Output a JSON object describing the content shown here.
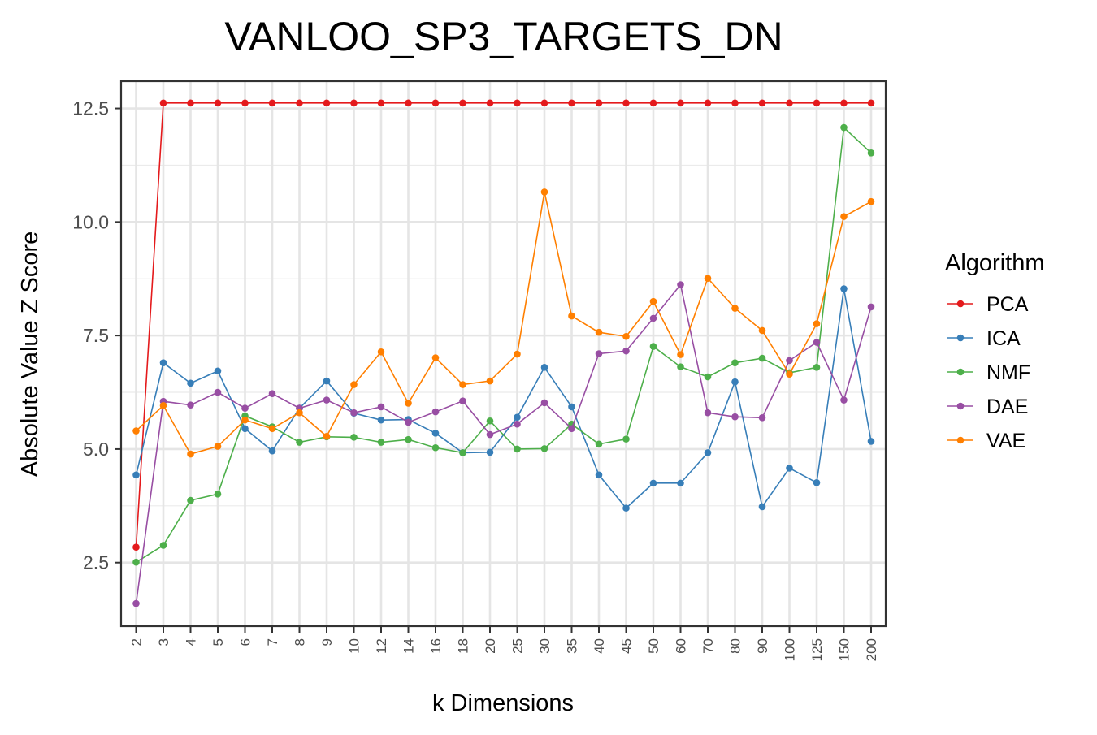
{
  "chart_data": {
    "type": "line",
    "title": "VANLOO_SP3_TARGETS_DN",
    "xlabel": "k Dimensions",
    "ylabel": "Absolute Value Z Score",
    "categories": [
      "2",
      "3",
      "4",
      "5",
      "6",
      "7",
      "8",
      "9",
      "10",
      "12",
      "14",
      "16",
      "18",
      "20",
      "25",
      "30",
      "35",
      "40",
      "45",
      "50",
      "60",
      "70",
      "80",
      "90",
      "100",
      "125",
      "150",
      "200"
    ],
    "ylim": [
      1.1,
      13.1
    ],
    "yticks": [
      2.5,
      5.0,
      7.5,
      10.0,
      12.5
    ],
    "ytick_labels": [
      "2.5",
      "5.0",
      "7.5",
      "10.0",
      "12.5"
    ],
    "grid": true,
    "legend": {
      "title": "Algorithm",
      "position": "right"
    },
    "series": [
      {
        "name": "PCA",
        "color": "#e41a1c",
        "values": [
          2.84,
          12.62,
          12.62,
          12.62,
          12.62,
          12.62,
          12.62,
          12.62,
          12.62,
          12.62,
          12.62,
          12.62,
          12.62,
          12.62,
          12.62,
          12.62,
          12.62,
          12.62,
          12.62,
          12.62,
          12.62,
          12.62,
          12.62,
          12.62,
          12.62,
          12.62,
          12.62,
          12.62
        ]
      },
      {
        "name": "ICA",
        "color": "#377eb8",
        "values": [
          4.43,
          6.9,
          6.45,
          6.72,
          5.45,
          4.96,
          5.9,
          6.5,
          5.79,
          5.64,
          5.65,
          5.35,
          4.92,
          4.93,
          5.7,
          6.8,
          5.93,
          4.43,
          3.7,
          4.25,
          4.25,
          4.92,
          6.48,
          3.73,
          4.58,
          4.26,
          8.53,
          5.17
        ]
      },
      {
        "name": "NMF",
        "color": "#4daf4a",
        "values": [
          2.51,
          2.88,
          3.87,
          4.01,
          5.73,
          5.49,
          5.15,
          5.27,
          5.26,
          5.15,
          5.21,
          5.03,
          4.92,
          5.62,
          5.0,
          5.01,
          5.55,
          5.11,
          5.22,
          7.26,
          6.81,
          6.59,
          6.9,
          7.0,
          6.68,
          6.8,
          12.08,
          11.52
        ]
      },
      {
        "name": "DAE",
        "color": "#984ea3",
        "values": [
          1.6,
          6.05,
          5.97,
          6.25,
          5.9,
          6.22,
          5.9,
          6.08,
          5.8,
          5.93,
          5.59,
          5.82,
          6.06,
          5.32,
          5.55,
          6.02,
          5.45,
          7.1,
          7.16,
          7.88,
          8.62,
          5.8,
          5.71,
          5.69,
          6.95,
          7.35,
          6.08,
          8.13
        ]
      },
      {
        "name": "VAE",
        "color": "#ff7f00",
        "values": [
          5.4,
          5.96,
          4.89,
          5.06,
          5.64,
          5.45,
          5.8,
          5.28,
          6.42,
          7.14,
          6.01,
          7.01,
          6.42,
          6.5,
          7.09,
          10.66,
          7.93,
          7.57,
          7.48,
          8.25,
          7.08,
          8.76,
          8.1,
          7.61,
          6.65,
          7.76,
          10.12,
          10.45
        ]
      }
    ]
  }
}
